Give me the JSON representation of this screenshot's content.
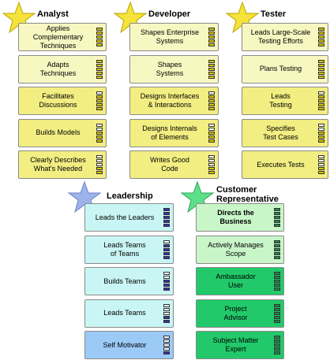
{
  "roles": [
    {
      "id": "analyst",
      "title": "Analyst",
      "star_color": "#f5e23a",
      "card_color": "#f7f7c2",
      "filled_card_color": "#f2ee82",
      "bar_color": "#d9c200",
      "items": [
        {
          "label": "Applies\nComplementary\nTechniques",
          "level": 5,
          "highlight": false
        },
        {
          "label": "Adapts\nTechniques",
          "level": 5,
          "highlight": false
        },
        {
          "label": "Facilitates\nDiscussions",
          "level": 4,
          "highlight": true
        },
        {
          "label": "Builds Models",
          "level": 3,
          "highlight": true
        },
        {
          "label": "Clearly Describes\nWhat's Needed",
          "level": 2,
          "highlight": true
        }
      ]
    },
    {
      "id": "developer",
      "title": "Developer",
      "star_color": "#f5e23a",
      "card_color": "#f7f7c2",
      "filled_card_color": "#f2ee82",
      "bar_color": "#d9c200",
      "items": [
        {
          "label": "Shapes Enterprise\nSystems",
          "level": 5,
          "highlight": false
        },
        {
          "label": "Shapes\nSystems",
          "level": 5,
          "highlight": false
        },
        {
          "label": "Designs Interfaces\n& Interactions",
          "level": 4,
          "highlight": true
        },
        {
          "label": "Designs Internals\nof Elements",
          "level": 3,
          "highlight": true
        },
        {
          "label": "Writes Good\nCode",
          "level": 2,
          "highlight": true
        }
      ]
    },
    {
      "id": "tester",
      "title": "Tester",
      "star_color": "#f5e23a",
      "card_color": "#f7f7c2",
      "filled_card_color": "#f2ee82",
      "bar_color": "#d9c200",
      "items": [
        {
          "label": "Leads Large-Scale\nTesting Efforts",
          "level": 5,
          "highlight": false
        },
        {
          "label": "Plans Testing",
          "level": 5,
          "highlight": false
        },
        {
          "label": "Leads\nTesting",
          "level": 4,
          "highlight": true
        },
        {
          "label": "Specifies\nTest Cases",
          "level": 3,
          "highlight": true
        },
        {
          "label": "Executes Tests",
          "level": 2,
          "highlight": true
        }
      ]
    },
    {
      "id": "leadership",
      "title": "Leadership",
      "star_color": "#9db4ea",
      "card_color": "#c9f6f4",
      "filled_card_color": "#9ccaf7",
      "bar_color": "#3a2fae",
      "items": [
        {
          "label": "Leads the Leaders",
          "level": 5,
          "highlight": false
        },
        {
          "label": "Leads Teams\nof Teams",
          "level": 4,
          "highlight": false
        },
        {
          "label": "Builds Teams",
          "level": 3,
          "highlight": false
        },
        {
          "label": "Leads Teams",
          "level": 2,
          "highlight": false
        },
        {
          "label": "Self Motivator",
          "level": 1,
          "highlight": true
        }
      ]
    },
    {
      "id": "customer",
      "title": "Customer\nRepresentative",
      "star_color": "#5ee08a",
      "card_color": "#c9f6c9",
      "filled_card_color": "#22c96a",
      "bar_color": "#1e8a4a",
      "items": [
        {
          "label": "Directs the\nBusiness",
          "level": 5,
          "highlight": false
        },
        {
          "label": "Actively Manages\nScope",
          "level": 5,
          "highlight": false
        },
        {
          "label": "Ambassador\nUser",
          "level": 5,
          "highlight": true
        },
        {
          "label": "Project\nAdvisor",
          "level": 5,
          "highlight": true
        },
        {
          "label": "Subject Matter\nExpert",
          "level": 5,
          "highlight": true
        }
      ]
    }
  ]
}
